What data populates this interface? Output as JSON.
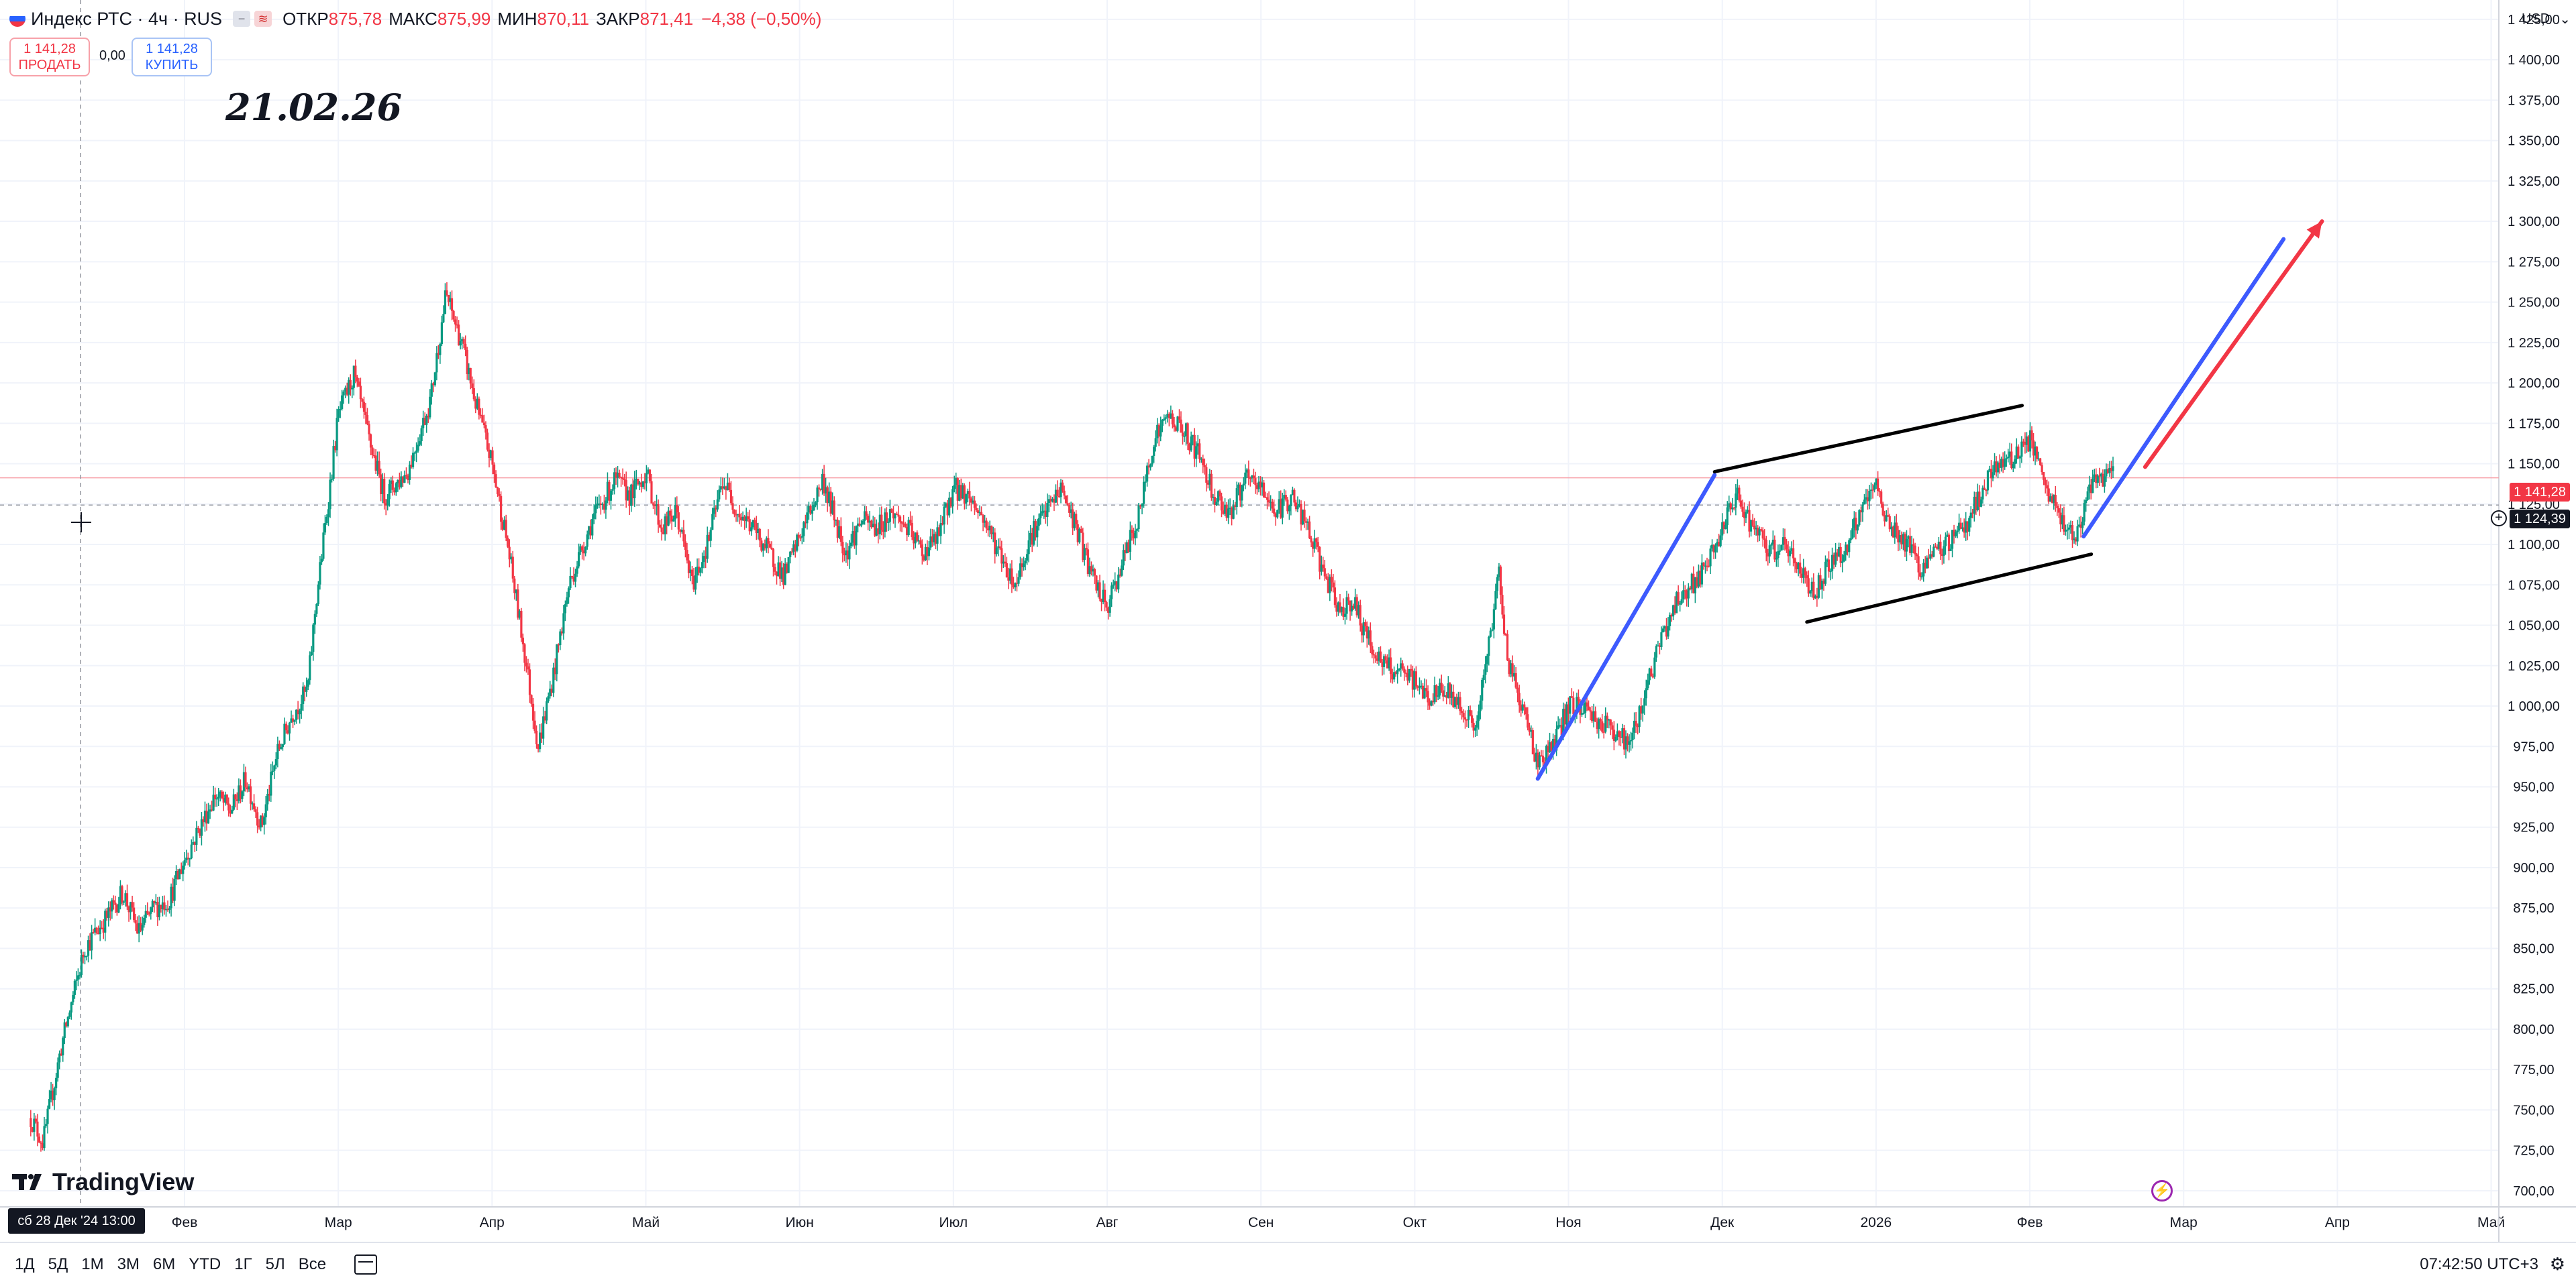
{
  "header": {
    "symbol": "Индекс РТС · 4ч · RUS",
    "open_label": "ОТКР",
    "open_value": "875,78",
    "high_label": "МАКС",
    "high_value": "875,99",
    "low_label": "МИН",
    "low_value": "870,11",
    "close_label": "ЗАКР",
    "close_value": "871,41",
    "change": "−4,38 (−0,50%)"
  },
  "trade": {
    "sell_price": "1 141,28",
    "sell_label": "ПРОДАТЬ",
    "spread": "0,00",
    "buy_price": "1 141,28",
    "buy_label": "КУПИТЬ"
  },
  "annotation_text": "21.02.26",
  "currency": "USD",
  "price_tags": {
    "last": "1 141,28",
    "cursor": "1 124,39"
  },
  "cursor_time": "сб 28 Дек '24  13:00",
  "brand": "TradingView",
  "ranges": [
    "1Д",
    "5Д",
    "1М",
    "3М",
    "6М",
    "YTD",
    "1Г",
    "5Л",
    "Все"
  ],
  "clock": "07:42:50 UTC+3",
  "colors": {
    "up": "#089981",
    "down": "#f23645",
    "blue_line": "#3d5afe",
    "red_arrow": "#f23645",
    "trend_black": "#000000"
  },
  "chart_data": {
    "type": "candlestick",
    "interval": "4h",
    "y_axis_labels": [
      "1 425,00",
      "1 400,00",
      "1 375,00",
      "1 350,00",
      "1 325,00",
      "1 300,00",
      "1 275,00",
      "1 250,00",
      "1 225,00",
      "1 200,00",
      "1 175,00",
      "1 150,00",
      "1 125,00",
      "1 100,00",
      "1 075,00",
      "1 050,00",
      "1 025,00",
      "1 000,00",
      "975,00",
      "950,00",
      "925,00",
      "900,00",
      "875,00",
      "850,00",
      "825,00",
      "800,00",
      "775,00",
      "750,00",
      "725,00",
      "700,00"
    ],
    "ylim": [
      690,
      1437
    ],
    "x_axis_labels": [
      "Фев",
      "Мар",
      "Апр",
      "Май",
      "Июн",
      "Июл",
      "Авг",
      "Сен",
      "Окт",
      "Ноя",
      "Дек",
      "2026",
      "Фев",
      "Мар",
      "Апр",
      "Май"
    ],
    "x_axis_month_index": [
      1,
      2,
      3,
      4,
      5,
      6,
      7,
      8,
      9,
      10,
      11,
      12,
      13,
      14,
      15,
      16
    ],
    "xlim": [
      -0.2,
      16.05
    ],
    "trend_path": [
      [
        0.0,
        745
      ],
      [
        0.08,
        730
      ],
      [
        0.2,
        790
      ],
      [
        0.35,
        850
      ],
      [
        0.5,
        870
      ],
      [
        0.6,
        885
      ],
      [
        0.7,
        860
      ],
      [
        0.8,
        875
      ],
      [
        0.9,
        880
      ],
      [
        1.0,
        905
      ],
      [
        1.1,
        925
      ],
      [
        1.2,
        945
      ],
      [
        1.3,
        935
      ],
      [
        1.4,
        955
      ],
      [
        1.5,
        925
      ],
      [
        1.6,
        970
      ],
      [
        1.7,
        995
      ],
      [
        1.8,
        1010
      ],
      [
        1.85,
        1060
      ],
      [
        1.95,
        1140
      ],
      [
        2.0,
        1180
      ],
      [
        2.1,
        1205
      ],
      [
        2.2,
        1165
      ],
      [
        2.3,
        1130
      ],
      [
        2.45,
        1145
      ],
      [
        2.6,
        1190
      ],
      [
        2.7,
        1255
      ],
      [
        2.8,
        1225
      ],
      [
        2.9,
        1185
      ],
      [
        3.0,
        1150
      ],
      [
        3.1,
        1100
      ],
      [
        3.2,
        1040
      ],
      [
        3.3,
        975
      ],
      [
        3.4,
        1020
      ],
      [
        3.5,
        1075
      ],
      [
        3.65,
        1115
      ],
      [
        3.8,
        1140
      ],
      [
        3.9,
        1130
      ],
      [
        4.0,
        1145
      ],
      [
        4.1,
        1110
      ],
      [
        4.2,
        1120
      ],
      [
        4.3,
        1075
      ],
      [
        4.4,
        1100
      ],
      [
        4.5,
        1140
      ],
      [
        4.6,
        1120
      ],
      [
        4.7,
        1110
      ],
      [
        4.8,
        1095
      ],
      [
        4.9,
        1080
      ],
      [
        5.0,
        1105
      ],
      [
        5.15,
        1140
      ],
      [
        5.3,
        1095
      ],
      [
        5.4,
        1115
      ],
      [
        5.5,
        1110
      ],
      [
        5.6,
        1120
      ],
      [
        5.7,
        1110
      ],
      [
        5.8,
        1095
      ],
      [
        5.9,
        1105
      ],
      [
        6.0,
        1135
      ],
      [
        6.1,
        1130
      ],
      [
        6.2,
        1115
      ],
      [
        6.3,
        1095
      ],
      [
        6.4,
        1075
      ],
      [
        6.5,
        1105
      ],
      [
        6.6,
        1120
      ],
      [
        6.7,
        1135
      ],
      [
        6.8,
        1110
      ],
      [
        6.9,
        1080
      ],
      [
        7.0,
        1060
      ],
      [
        7.1,
        1090
      ],
      [
        7.2,
        1115
      ],
      [
        7.3,
        1165
      ],
      [
        7.4,
        1180
      ],
      [
        7.5,
        1170
      ],
      [
        7.6,
        1155
      ],
      [
        7.7,
        1130
      ],
      [
        7.8,
        1120
      ],
      [
        7.9,
        1140
      ],
      [
        8.0,
        1135
      ],
      [
        8.1,
        1120
      ],
      [
        8.2,
        1130
      ],
      [
        8.3,
        1110
      ],
      [
        8.4,
        1085
      ],
      [
        8.5,
        1060
      ],
      [
        8.6,
        1065
      ],
      [
        8.7,
        1040
      ],
      [
        8.8,
        1025
      ],
      [
        8.9,
        1020
      ],
      [
        9.0,
        1015
      ],
      [
        9.1,
        1005
      ],
      [
        9.2,
        1010
      ],
      [
        9.3,
        1000
      ],
      [
        9.4,
        985
      ],
      [
        9.5,
        1050
      ],
      [
        9.55,
        1085
      ],
      [
        9.6,
        1030
      ],
      [
        9.7,
        1000
      ],
      [
        9.8,
        965
      ],
      [
        9.9,
        975
      ],
      [
        10.0,
        1000
      ],
      [
        10.1,
        1000
      ],
      [
        10.2,
        990
      ],
      [
        10.3,
        985
      ],
      [
        10.4,
        975
      ],
      [
        10.5,
        1010
      ],
      [
        10.6,
        1040
      ],
      [
        10.7,
        1065
      ],
      [
        10.8,
        1075
      ],
      [
        10.9,
        1085
      ],
      [
        11.0,
        1110
      ],
      [
        11.1,
        1130
      ],
      [
        11.2,
        1110
      ],
      [
        11.3,
        1095
      ],
      [
        11.4,
        1100
      ],
      [
        11.5,
        1085
      ],
      [
        11.6,
        1070
      ],
      [
        11.7,
        1090
      ],
      [
        11.8,
        1095
      ],
      [
        11.9,
        1120
      ],
      [
        12.0,
        1135
      ],
      [
        12.1,
        1110
      ],
      [
        12.2,
        1100
      ],
      [
        12.3,
        1085
      ],
      [
        12.4,
        1095
      ],
      [
        12.5,
        1105
      ],
      [
        12.6,
        1115
      ],
      [
        12.7,
        1135
      ],
      [
        12.8,
        1150
      ],
      [
        12.9,
        1155
      ],
      [
        13.0,
        1165
      ],
      [
        13.1,
        1135
      ],
      [
        13.2,
        1115
      ],
      [
        13.3,
        1105
      ],
      [
        13.35,
        1120
      ],
      [
        13.4,
        1135
      ],
      [
        13.5,
        1145
      ],
      [
        13.55,
        1141
      ]
    ],
    "drawings": {
      "blue_line_1": [
        [
          9.8,
          955
        ],
        [
          10.95,
          1143
        ]
      ],
      "black_channel_top": [
        [
          10.95,
          1145
        ],
        [
          12.95,
          1186
        ]
      ],
      "black_channel_bottom": [
        [
          11.55,
          1052
        ],
        [
          13.4,
          1094
        ]
      ],
      "blue_line_2": [
        [
          13.35,
          1105
        ],
        [
          14.65,
          1289
        ]
      ],
      "red_arrow": [
        [
          13.75,
          1148
        ],
        [
          14.9,
          1300
        ]
      ]
    },
    "last_price": 1141.28,
    "cursor_price": 1124.39,
    "cursor_x_month": 0.0
  }
}
